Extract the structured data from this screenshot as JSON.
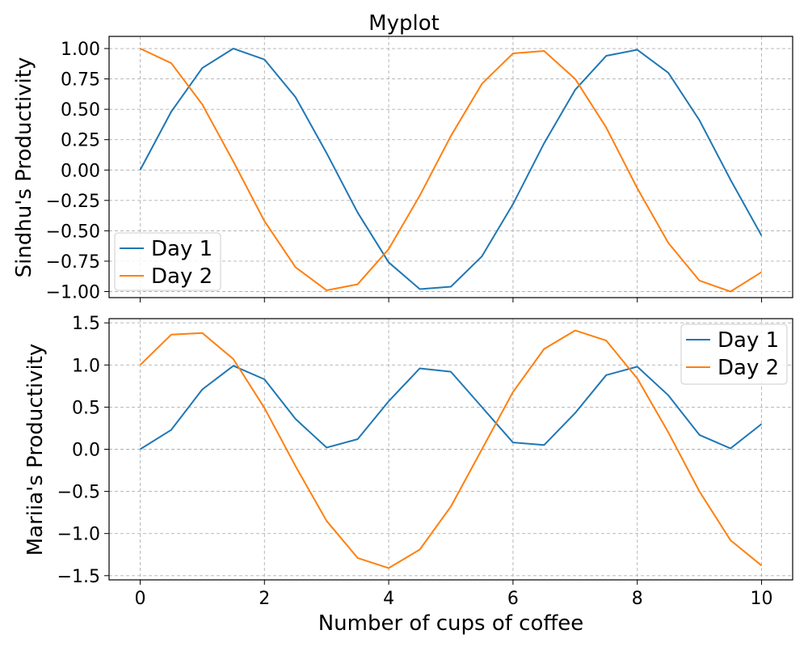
{
  "title": "Myplot",
  "xlabel": "Number of cups of coffee",
  "colors": {
    "day1": "#1f77b4",
    "day2": "#ff7f0e",
    "grid": "#b0b0b0"
  },
  "chart_data": [
    {
      "type": "line",
      "title": "Myplot",
      "xlabel": "",
      "ylabel": "Sindhu's Productivity",
      "xlim": [
        -0.5,
        10.5
      ],
      "ylim": [
        -1.05,
        1.1
      ],
      "x_ticks": [
        0,
        2,
        4,
        6,
        8,
        10
      ],
      "y_ticks": [
        1.0,
        0.75,
        0.5,
        0.25,
        0.0,
        -0.25,
        -0.5,
        -0.75,
        -1.0
      ],
      "y_tick_labels": [
        "1.00",
        "0.75",
        "0.50",
        "0.25",
        "0.00",
        "−0.25",
        "−0.50",
        "−0.75",
        "−1.00"
      ],
      "grid": true,
      "legend_position": "lower-left",
      "x": [
        0,
        0.5,
        1,
        1.5,
        2,
        2.5,
        3,
        3.5,
        4,
        4.5,
        5,
        5.5,
        6,
        6.5,
        7,
        7.5,
        8,
        8.5,
        9,
        9.5,
        10
      ],
      "series": [
        {
          "name": "Day 1",
          "color": "#1f77b4",
          "values": [
            0.0,
            0.48,
            0.84,
            1.0,
            0.91,
            0.6,
            0.14,
            -0.35,
            -0.76,
            -0.98,
            -0.96,
            -0.71,
            -0.28,
            0.22,
            0.66,
            0.94,
            0.99,
            0.8,
            0.41,
            -0.08,
            -0.54
          ]
        },
        {
          "name": "Day 2",
          "color": "#ff7f0e",
          "values": [
            1.0,
            0.88,
            0.54,
            0.07,
            -0.42,
            -0.8,
            -0.99,
            -0.94,
            -0.65,
            -0.21,
            0.28,
            0.71,
            0.96,
            0.98,
            0.75,
            0.35,
            -0.15,
            -0.6,
            -0.91,
            -1.0,
            -0.84
          ]
        }
      ]
    },
    {
      "type": "line",
      "title": "",
      "xlabel": "Number of cups of coffee",
      "ylabel": "Mariia's Productivity",
      "xlim": [
        -0.5,
        10.5
      ],
      "ylim": [
        -1.55,
        1.55
      ],
      "x_ticks": [
        0,
        2,
        4,
        6,
        8,
        10
      ],
      "y_ticks": [
        1.5,
        1.0,
        0.5,
        0.0,
        -0.5,
        -1.0,
        -1.5
      ],
      "y_tick_labels": [
        "1.5",
        "1.0",
        "0.5",
        "0.0",
        "−0.5",
        "−1.0",
        "−1.5"
      ],
      "grid": true,
      "legend_position": "upper-right",
      "x": [
        0,
        0.5,
        1,
        1.5,
        2,
        2.5,
        3,
        3.5,
        4,
        4.5,
        5,
        5.5,
        6,
        6.5,
        7,
        7.5,
        8,
        8.5,
        9,
        9.5,
        10
      ],
      "series": [
        {
          "name": "Day 1",
          "color": "#1f77b4",
          "values": [
            0.0,
            0.23,
            0.71,
            0.99,
            0.83,
            0.36,
            0.02,
            0.12,
            0.57,
            0.96,
            0.92,
            0.5,
            0.08,
            0.05,
            0.43,
            0.88,
            0.98,
            0.64,
            0.17,
            0.01,
            0.3
          ]
        },
        {
          "name": "Day 2",
          "color": "#ff7f0e",
          "values": [
            1.0,
            1.36,
            1.38,
            1.07,
            0.49,
            -0.2,
            -0.85,
            -1.29,
            -1.41,
            -1.19,
            -0.68,
            0.0,
            0.68,
            1.19,
            1.41,
            1.29,
            0.84,
            0.2,
            -0.5,
            -1.08,
            -1.38
          ]
        }
      ]
    }
  ]
}
